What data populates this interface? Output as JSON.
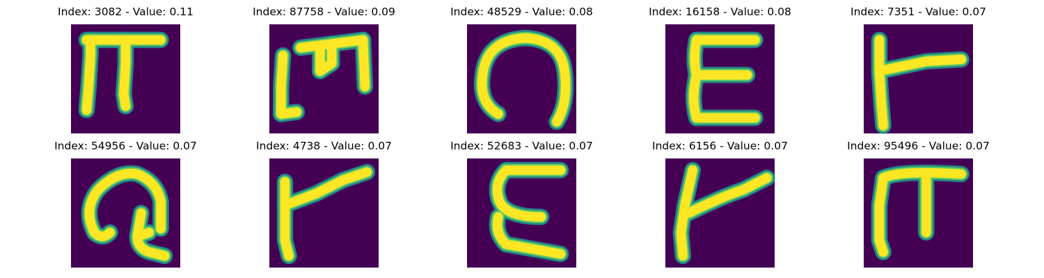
{
  "chart_data": {
    "type": "image_grid",
    "rows": 2,
    "cols": 5,
    "colormap": {
      "background": "#440154",
      "edge": "#21918c",
      "mid": "#5ec962",
      "peak": "#fde725"
    },
    "panels": [
      {
        "title": "Index: 3082 - Value: 0.11",
        "index": 3082,
        "value": 0.11,
        "glyph": "pi-bar"
      },
      {
        "title": "Index: 87758 - Value: 0.09",
        "index": 87758,
        "value": 0.09,
        "glyph": "m-shape"
      },
      {
        "title": "Index: 48529 - Value: 0.08",
        "index": 48529,
        "value": 0.08,
        "glyph": "curl"
      },
      {
        "title": "Index: 16158 - Value: 0.08",
        "index": 16158,
        "value": 0.08,
        "glyph": "epsilon"
      },
      {
        "title": "Index: 7351 - Value: 0.07",
        "index": 7351,
        "value": 0.07,
        "glyph": "gamma-hook"
      },
      {
        "title": "Index: 54956 - Value: 0.07",
        "index": 54956,
        "value": 0.07,
        "glyph": "curl-loop"
      },
      {
        "title": "Index: 4738 - Value: 0.07",
        "index": 4738,
        "value": 0.07,
        "glyph": "gamma-wide"
      },
      {
        "title": "Index: 52683 - Value: 0.07",
        "index": 52683,
        "value": 0.07,
        "glyph": "epsilon-thin"
      },
      {
        "title": "Index: 6156 - Value: 0.07",
        "index": 6156,
        "value": 0.07,
        "glyph": "gamma-slant"
      },
      {
        "title": "Index: 95496 - Value: 0.07",
        "index": 95496,
        "value": 0.07,
        "glyph": "pi-narrow"
      }
    ]
  }
}
